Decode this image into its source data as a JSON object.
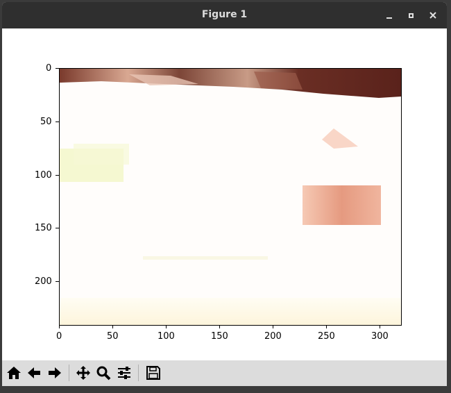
{
  "window": {
    "title": "Figure 1",
    "buttons": [
      "minimize",
      "maximize",
      "close"
    ]
  },
  "toolbar": {
    "items": [
      "home-icon",
      "back-arrow-icon",
      "forward-arrow-icon",
      "pan-icon",
      "zoom-icon",
      "configure-subplots-icon",
      "save-icon"
    ]
  },
  "chart_data": {
    "type": "heatmap",
    "title": "",
    "xlabel": "",
    "ylabel": "",
    "x_ticks": [
      0,
      50,
      100,
      150,
      200,
      250,
      300
    ],
    "y_ticks": [
      0,
      50,
      100,
      150,
      200
    ],
    "xlim": [
      0,
      320
    ],
    "ylim": [
      240,
      0
    ],
    "image_width": 320,
    "image_height": 240,
    "description_colors": {
      "background": "#fffdfb",
      "top_band": "#8b3c2c",
      "box": "#e89a80",
      "yellow_patch": "#f4f7c8"
    }
  }
}
